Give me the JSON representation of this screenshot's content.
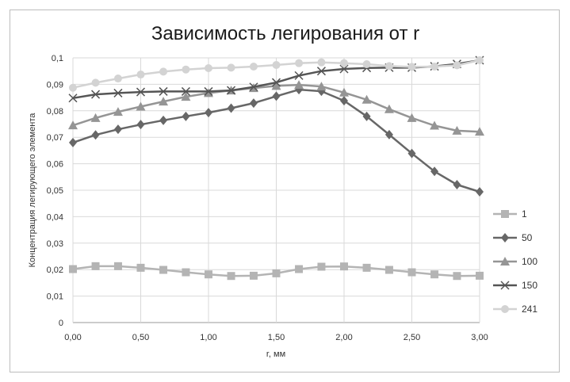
{
  "chart_data": {
    "type": "line",
    "title": "Зависимость легирования от r",
    "xlabel": "r, мм",
    "ylabel": "Концентрация легирующего элемента",
    "xlim": [
      0,
      3
    ],
    "ylim": [
      0,
      0.1
    ],
    "grid": true,
    "legend_position": "right",
    "x_ticks": [
      "0,00",
      "0,50",
      "1,00",
      "1,50",
      "2,00",
      "2,50",
      "3,00"
    ],
    "y_ticks": [
      "0",
      "0,01",
      "0,02",
      "0,03",
      "0,04",
      "0,05",
      "0,06",
      "0,07",
      "0,08",
      "0,09",
      "0,1"
    ],
    "x": [
      0,
      0.167,
      0.333,
      0.5,
      0.667,
      0.833,
      1.0,
      1.167,
      1.333,
      1.5,
      1.667,
      1.833,
      2.0,
      2.167,
      2.333,
      2.5,
      2.667,
      2.833,
      3.0
    ],
    "series": [
      {
        "name": "1",
        "marker": "square",
        "color": "#b4b4b4",
        "values": [
          0.0202,
          0.0213,
          0.0213,
          0.0207,
          0.0199,
          0.019,
          0.0182,
          0.0176,
          0.0177,
          0.0186,
          0.0202,
          0.0211,
          0.0212,
          0.0207,
          0.0199,
          0.019,
          0.0182,
          0.0176,
          0.0177
        ]
      },
      {
        "name": "50",
        "marker": "diamond",
        "color": "#676767",
        "values": [
          0.068,
          0.0709,
          0.073,
          0.0748,
          0.0764,
          0.0779,
          0.0793,
          0.081,
          0.0829,
          0.0855,
          0.088,
          0.0874,
          0.0838,
          0.0779,
          0.071,
          0.0639,
          0.0571,
          0.0521,
          0.0494
        ]
      },
      {
        "name": "100",
        "marker": "triangle",
        "color": "#959595",
        "values": [
          0.0745,
          0.0773,
          0.0796,
          0.0816,
          0.0835,
          0.0853,
          0.0867,
          0.0877,
          0.0886,
          0.0894,
          0.0898,
          0.0892,
          0.0869,
          0.0842,
          0.0806,
          0.0773,
          0.0744,
          0.0725,
          0.0721
        ]
      },
      {
        "name": "150",
        "marker": "x",
        "color": "#555555",
        "values": [
          0.0848,
          0.0862,
          0.0867,
          0.0871,
          0.0873,
          0.0873,
          0.0873,
          0.0877,
          0.089,
          0.0907,
          0.0933,
          0.095,
          0.0958,
          0.0962,
          0.0963,
          0.0963,
          0.0968,
          0.0977,
          0.0991
        ]
      },
      {
        "name": "241",
        "marker": "circle",
        "color": "#d3d3d3",
        "values": [
          0.0887,
          0.0906,
          0.0922,
          0.0937,
          0.0948,
          0.0956,
          0.0961,
          0.0963,
          0.0967,
          0.0973,
          0.098,
          0.0983,
          0.098,
          0.0976,
          0.0969,
          0.0966,
          0.0967,
          0.0972,
          0.0991
        ]
      }
    ]
  }
}
